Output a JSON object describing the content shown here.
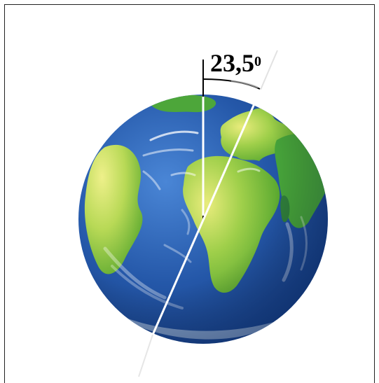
{
  "diagram": {
    "angle_value": "23,5",
    "angle_unit_superscript": "0",
    "colors": {
      "ocean": "#1f4fa0",
      "ocean_light": "#3b77c8",
      "land": "#6fb832",
      "land_light": "#e6ea7a",
      "axis": "#ffffff",
      "arc": "#000000",
      "frame": "#222222"
    }
  }
}
